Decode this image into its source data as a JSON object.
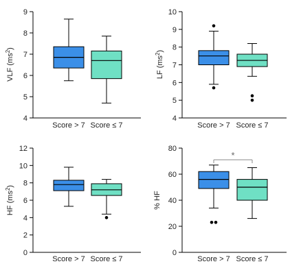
{
  "chart_data": [
    {
      "type": "boxplot",
      "ylabel_main": "VLF (ms",
      "ylabel_sup": "2",
      "ylabel_tail": ")",
      "ylim": [
        4,
        9
      ],
      "yticks": [
        4,
        5,
        6,
        7,
        8,
        9
      ],
      "tick_labels": [
        "4",
        "5",
        "6",
        "7",
        "8",
        "9"
      ],
      "categories": [
        "Score > 7",
        "Score ≤ 7"
      ],
      "colors": [
        "#3b8fe8",
        "#6fe0c4"
      ],
      "boxes": [
        {
          "min": 5.75,
          "q1": 6.35,
          "median": 6.85,
          "q3": 7.35,
          "max": 8.65,
          "outliers": []
        },
        {
          "min": 4.7,
          "q1": 5.85,
          "median": 6.7,
          "q3": 7.15,
          "max": 7.85,
          "outliers": []
        }
      ]
    },
    {
      "type": "boxplot",
      "ylabel_main": "LF (ms",
      "ylabel_sup": "2",
      "ylabel_tail": ")",
      "ylim": [
        4,
        10
      ],
      "yticks": [
        4,
        5,
        6,
        7,
        8,
        9,
        10
      ],
      "tick_labels": [
        "4",
        "5",
        "6",
        "7",
        "8",
        "9",
        "10"
      ],
      "categories": [
        "Score > 7",
        "Score ≤ 7"
      ],
      "colors": [
        "#3b8fe8",
        "#6fe0c4"
      ],
      "boxes": [
        {
          "min": 5.9,
          "q1": 7.0,
          "median": 7.5,
          "q3": 7.8,
          "max": 8.9,
          "outliers": [
            9.2,
            5.7
          ]
        },
        {
          "min": 6.35,
          "q1": 6.9,
          "median": 7.25,
          "q3": 7.6,
          "max": 8.2,
          "outliers": [
            5.25,
            5.0
          ]
        }
      ]
    },
    {
      "type": "boxplot",
      "ylabel_main": "HF (ms",
      "ylabel_sup": "2",
      "ylabel_tail": ")",
      "ylim": [
        0,
        12
      ],
      "yticks": [
        0,
        2,
        4,
        6,
        8,
        10,
        12
      ],
      "tick_labels": [
        "0",
        "2",
        "4",
        "6",
        "8",
        "10",
        "12"
      ],
      "categories": [
        "Score > 7",
        "Score ≤ 7"
      ],
      "colors": [
        "#3b8fe8",
        "#6fe0c4"
      ],
      "boxes": [
        {
          "min": 5.3,
          "q1": 7.1,
          "median": 7.8,
          "q3": 8.3,
          "max": 9.8,
          "outliers": []
        },
        {
          "min": 4.4,
          "q1": 6.55,
          "median": 7.2,
          "q3": 7.9,
          "max": 8.4,
          "outliers": [
            4.0
          ]
        }
      ]
    },
    {
      "type": "boxplot",
      "ylabel_main": "% HF",
      "ylabel_sup": "",
      "ylabel_tail": "",
      "ylim": [
        0,
        80
      ],
      "yticks": [
        0,
        20,
        40,
        60,
        80
      ],
      "tick_labels": [
        "0",
        "20",
        "40",
        "60",
        "80"
      ],
      "categories": [
        "Score > 7",
        "Score ≤ 7"
      ],
      "colors": [
        "#3b8fe8",
        "#6fe0c4"
      ],
      "boxes": [
        {
          "min": 34,
          "q1": 49,
          "median": 56,
          "q3": 62,
          "max": 67,
          "outliers": [
            23,
            23
          ]
        },
        {
          "min": 26,
          "q1": 40,
          "median": 50,
          "q3": 56,
          "max": 65,
          "outliers": []
        }
      ],
      "annotation": "*"
    }
  ]
}
